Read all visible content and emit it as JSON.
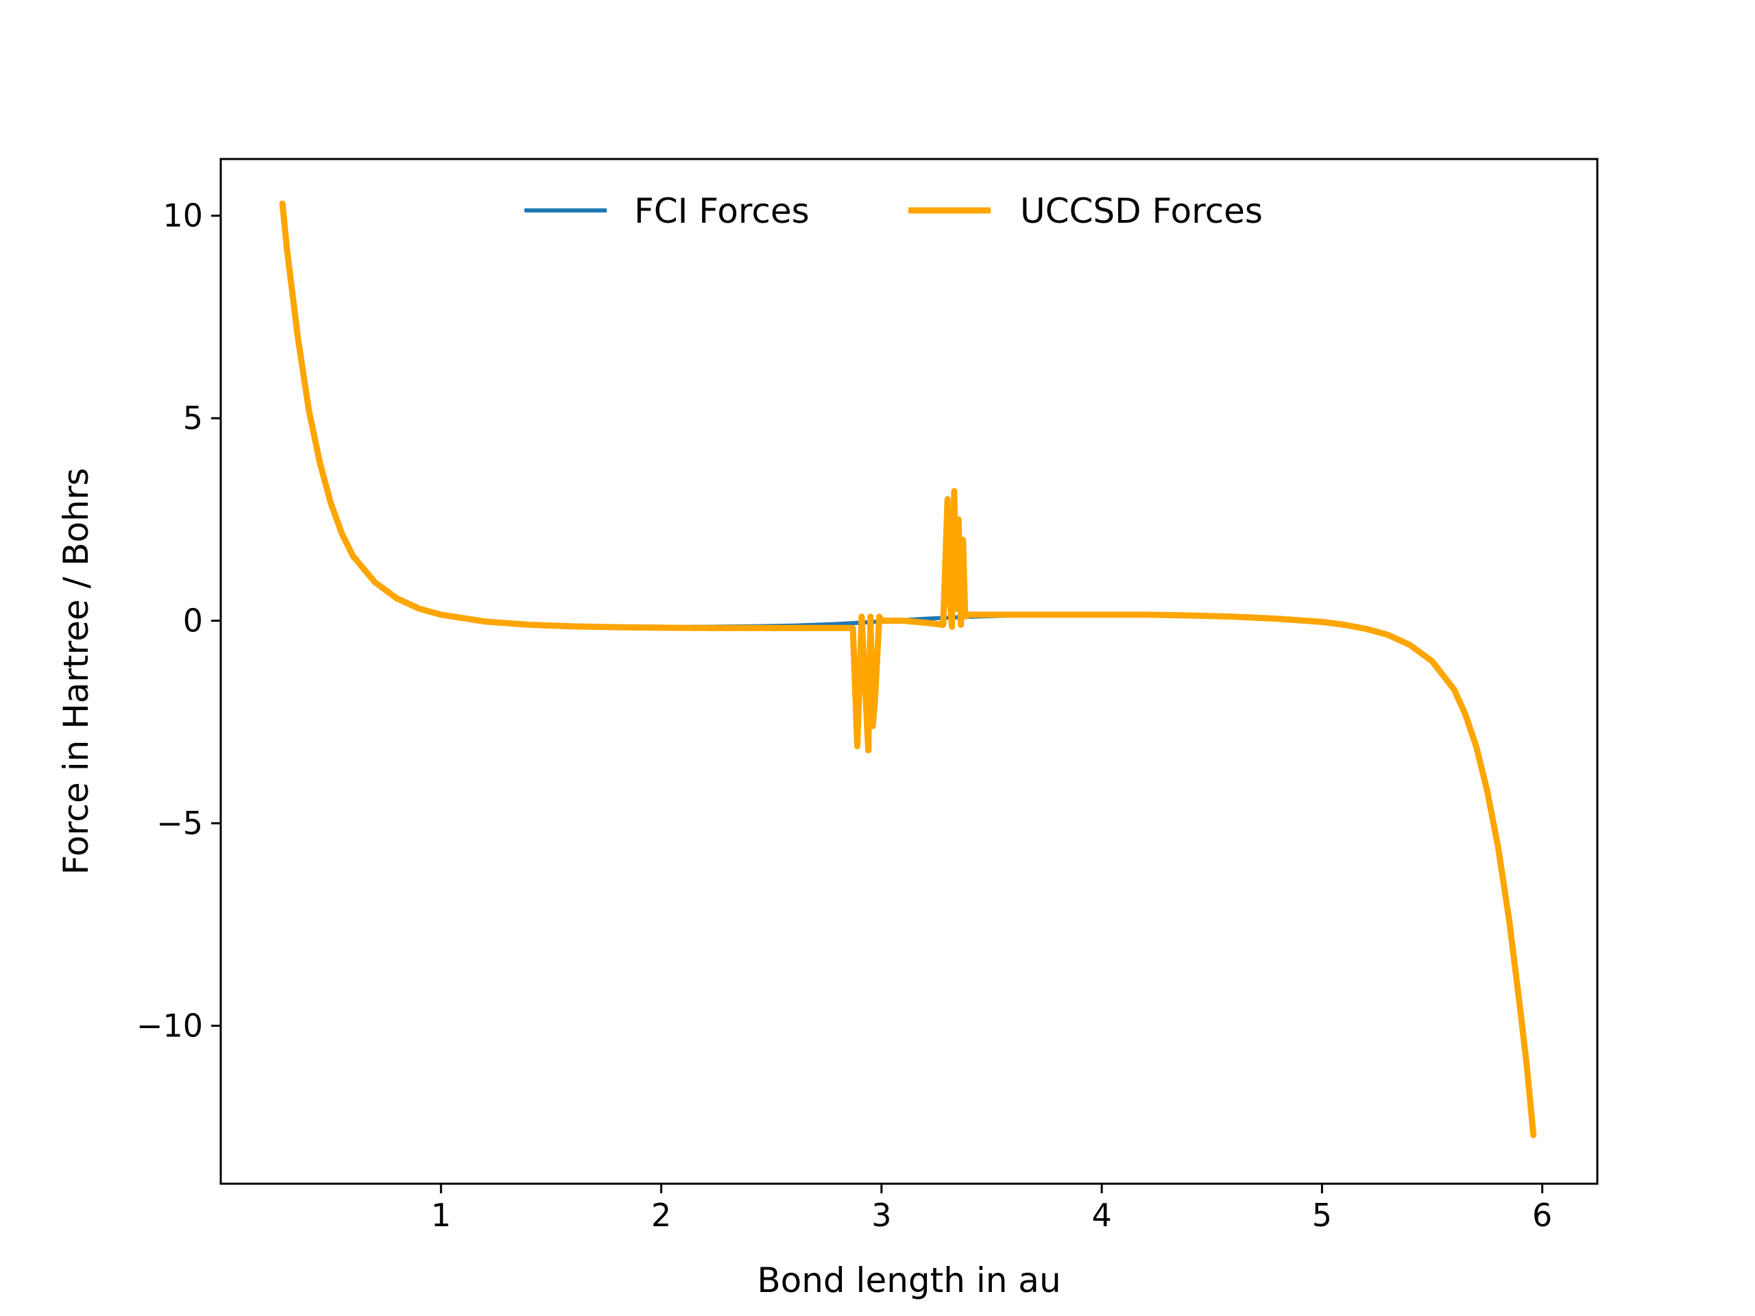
{
  "chart_data": {
    "type": "line",
    "title": "",
    "xlabel": "Bond length in au",
    "ylabel": "Force in Hartree / Bohrs",
    "xlim": [
      0.0,
      6.25
    ],
    "ylim": [
      -13.9,
      11.4
    ],
    "xticks": [
      1,
      2,
      3,
      4,
      5,
      6
    ],
    "xtick_labels": [
      "1",
      "2",
      "3",
      "4",
      "5",
      "6"
    ],
    "yticks": [
      10,
      5,
      0,
      -5,
      -10
    ],
    "ytick_labels": [
      "10",
      "5",
      "0",
      "−5",
      "−10"
    ],
    "grid": false,
    "legend": {
      "placement": "top-center",
      "columns": 2
    },
    "series": [
      {
        "name": "FCI Forces",
        "color": "#1f77b4",
        "x": [
          0.28,
          0.3,
          0.35,
          0.4,
          0.45,
          0.5,
          0.55,
          0.6,
          0.7,
          0.8,
          0.9,
          1.0,
          1.2,
          1.4,
          1.6,
          1.8,
          2.0,
          2.2,
          2.4,
          2.6,
          2.8,
          3.0,
          3.2,
          3.4,
          3.6,
          3.8,
          4.0,
          4.2,
          4.4,
          4.6,
          4.8,
          5.0,
          5.1,
          5.2,
          5.3,
          5.4,
          5.5,
          5.6,
          5.65,
          5.7,
          5.75,
          5.8,
          5.85,
          5.9,
          5.93,
          5.96
        ],
        "y": [
          10.3,
          9.2,
          7.0,
          5.2,
          3.9,
          2.9,
          2.15,
          1.6,
          0.95,
          0.55,
          0.3,
          0.15,
          0.0,
          -0.08,
          -0.12,
          -0.14,
          -0.15,
          -0.15,
          -0.14,
          -0.12,
          -0.08,
          -0.02,
          0.05,
          0.1,
          0.13,
          0.14,
          0.14,
          0.14,
          0.13,
          0.1,
          0.05,
          -0.03,
          -0.1,
          -0.2,
          -0.35,
          -0.6,
          -1.0,
          -1.7,
          -2.3,
          -3.1,
          -4.2,
          -5.6,
          -7.4,
          -9.6,
          -11.0,
          -12.7
        ]
      },
      {
        "name": "UCCSD Forces",
        "color": "#ffa500",
        "x": [
          0.28,
          0.3,
          0.35,
          0.4,
          0.45,
          0.5,
          0.55,
          0.6,
          0.7,
          0.8,
          0.9,
          1.0,
          1.2,
          1.4,
          1.6,
          1.8,
          2.0,
          2.2,
          2.4,
          2.6,
          2.8,
          2.87,
          2.89,
          2.91,
          2.92,
          2.94,
          2.95,
          2.96,
          2.97,
          2.99,
          3.0,
          3.1,
          3.2,
          3.28,
          3.3,
          3.31,
          3.32,
          3.33,
          3.34,
          3.35,
          3.36,
          3.37,
          3.38,
          3.4,
          3.6,
          3.8,
          4.0,
          4.2,
          4.4,
          4.6,
          4.8,
          5.0,
          5.1,
          5.2,
          5.3,
          5.4,
          5.5,
          5.6,
          5.65,
          5.7,
          5.75,
          5.8,
          5.85,
          5.9,
          5.93,
          5.96
        ],
        "y": [
          10.3,
          9.2,
          7.0,
          5.2,
          3.9,
          2.9,
          2.15,
          1.6,
          0.95,
          0.55,
          0.3,
          0.15,
          -0.02,
          -0.1,
          -0.14,
          -0.16,
          -0.17,
          -0.18,
          -0.18,
          -0.18,
          -0.18,
          -0.18,
          -3.1,
          0.1,
          -1.0,
          -3.2,
          0.1,
          -2.6,
          -2.0,
          0.1,
          0.0,
          0.0,
          -0.05,
          -0.1,
          3.0,
          0.5,
          -0.15,
          3.2,
          0.3,
          2.5,
          -0.1,
          2.0,
          0.1,
          0.15,
          0.15,
          0.15,
          0.15,
          0.15,
          0.13,
          0.1,
          0.05,
          -0.03,
          -0.1,
          -0.2,
          -0.35,
          -0.6,
          -1.0,
          -1.7,
          -2.3,
          -3.1,
          -4.2,
          -5.6,
          -7.4,
          -9.6,
          -11.0,
          -12.7
        ]
      }
    ]
  }
}
